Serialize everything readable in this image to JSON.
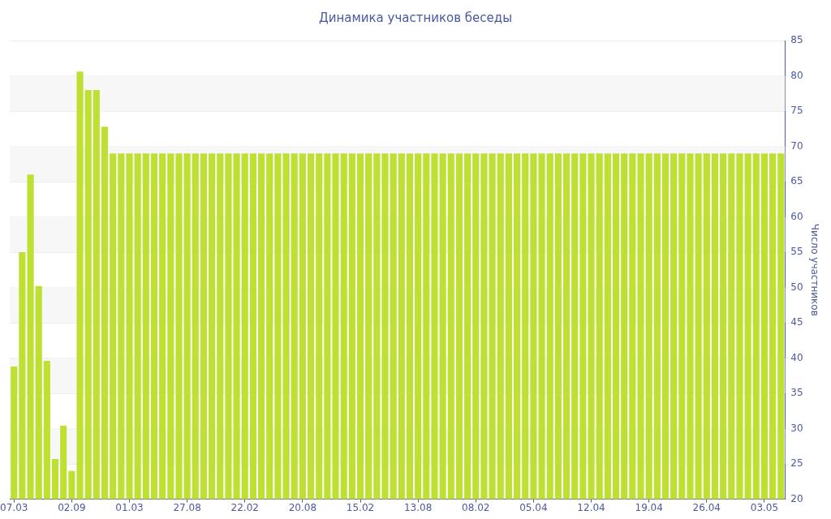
{
  "chart_data": {
    "type": "bar",
    "title": "Динамика участников беседы",
    "y2label": "Число участников",
    "categories": [
      "07.03",
      null,
      null,
      null,
      null,
      null,
      null,
      "02.09",
      null,
      null,
      null,
      null,
      null,
      null,
      "01.03",
      null,
      null,
      null,
      null,
      null,
      null,
      "27.08",
      null,
      null,
      null,
      null,
      null,
      null,
      "22.02",
      null,
      null,
      null,
      null,
      null,
      null,
      "20.08",
      null,
      null,
      null,
      null,
      null,
      null,
      "15.02",
      null,
      null,
      null,
      null,
      null,
      null,
      "13.08",
      null,
      null,
      null,
      null,
      null,
      null,
      "08.02",
      null,
      null,
      null,
      null,
      null,
      null,
      "05.04",
      null,
      null,
      null,
      null,
      null,
      null,
      "12.04",
      null,
      null,
      null,
      null,
      null,
      null,
      "19.04",
      null,
      null,
      null,
      null,
      null,
      null,
      "26.04",
      null,
      null,
      null,
      null,
      null,
      null,
      "03.05",
      null,
      null
    ],
    "series": [
      {
        "color": "#bde033",
        "axis": "y2",
        "values": [
          38.8,
          55,
          66,
          50.2,
          39.6,
          25.7,
          30.4,
          24,
          80.6,
          78,
          78,
          72.8,
          69,
          69,
          69,
          69,
          69,
          69,
          69,
          69,
          69,
          69,
          69,
          69,
          69,
          69,
          69,
          69,
          69,
          69,
          69,
          69,
          69,
          69,
          69,
          69,
          69,
          69,
          69,
          69,
          69,
          69,
          69,
          69,
          69,
          69,
          69,
          69,
          69,
          69,
          69,
          69,
          69,
          69,
          69,
          69,
          69,
          69,
          69,
          69,
          69,
          69,
          69,
          69,
          69,
          69,
          69,
          69,
          69,
          69,
          69,
          69,
          69,
          69,
          69,
          69,
          69,
          69,
          69,
          69,
          69,
          69,
          69,
          69,
          69,
          69,
          69,
          69,
          69,
          69,
          69,
          69,
          69,
          69
        ]
      }
    ],
    "y2lim": [
      20,
      85
    ],
    "y2ticks": [
      20,
      25,
      30,
      35,
      40,
      45,
      50,
      55,
      60,
      65,
      70,
      75,
      80,
      85
    ],
    "grid": "y",
    "legend": false
  }
}
